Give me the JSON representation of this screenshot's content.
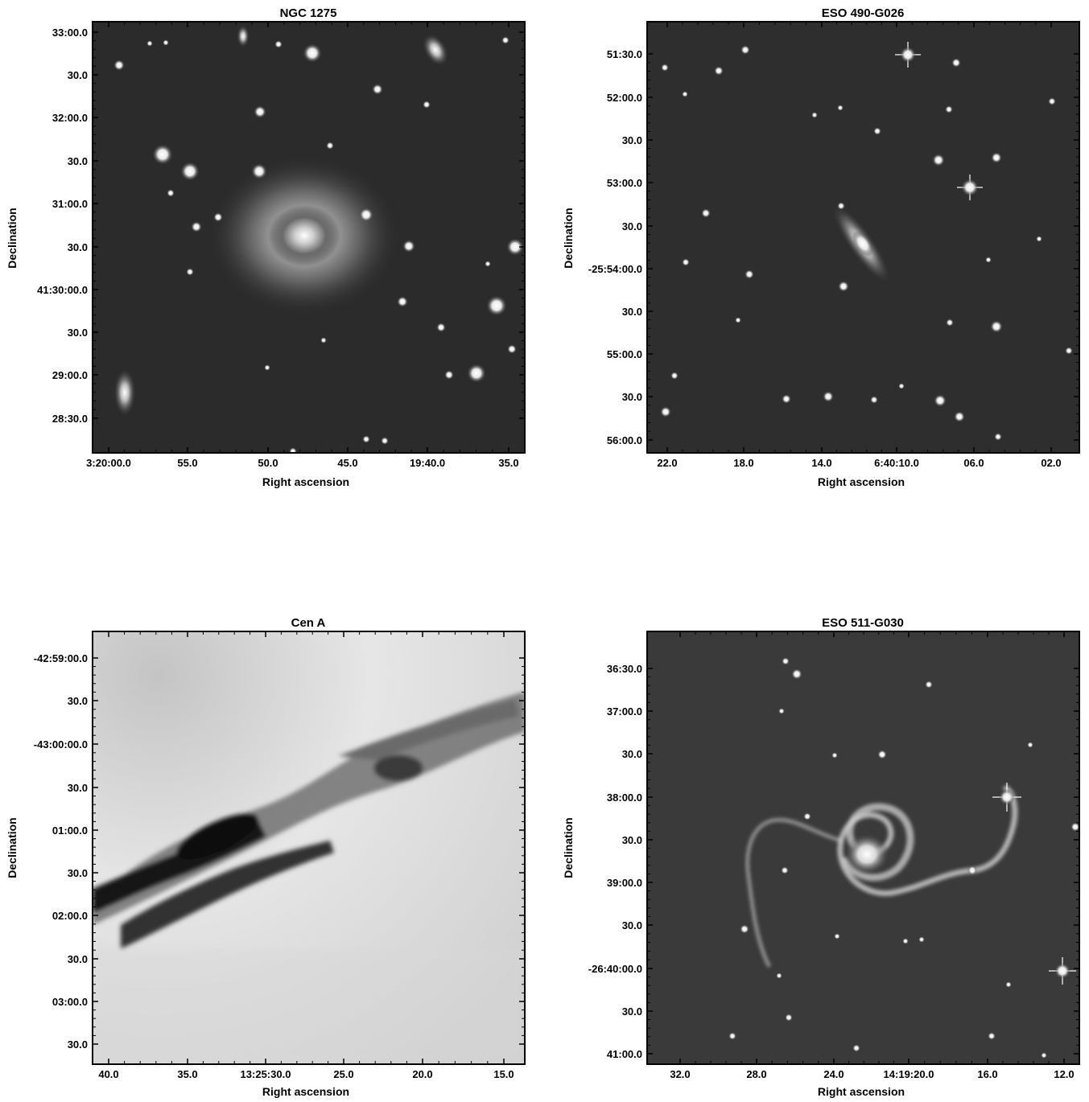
{
  "panels": [
    {
      "id": "ngc1275",
      "title": "NGC 1275",
      "xlabel": "Right ascension",
      "ylabel": "Declination",
      "xticks": [
        "3:20:00.0",
        "55.0",
        "50.0",
        "45.0",
        "19:40.0",
        "35.0"
      ],
      "yticks": [
        "33:00.0",
        "30.0",
        "32:00.0",
        "30.0",
        "31:00.0",
        "30.0",
        "41:30:00.0",
        "30.0",
        "29:00.0",
        "28:30.0"
      ],
      "image": {
        "style": "dark-field",
        "object": "giant elliptical galaxy with cluster members"
      }
    },
    {
      "id": "eso490",
      "title": "ESO 490-G026",
      "xlabel": "Right ascension",
      "ylabel": "Declination",
      "xticks": [
        "22.0",
        "18.0",
        "14.0",
        "6:40:10.0",
        "06.0",
        "02.0"
      ],
      "yticks": [
        "51:30.0",
        "52:00.0",
        "30.0",
        "53:00.0",
        "30.0",
        "-25:54:00.0",
        "30.0",
        "55:00.0",
        "30.0",
        "56:00.0"
      ],
      "image": {
        "style": "dark-field",
        "object": "inclined disk galaxy in star field"
      }
    },
    {
      "id": "cena",
      "title": "Cen A",
      "xlabel": "Right ascension",
      "ylabel": "Declination",
      "xticks": [
        "40.0",
        "35.0",
        "13:25:30.0",
        "25.0",
        "20.0",
        "15.0"
      ],
      "yticks": [
        "-42:59:00.0",
        "30.0",
        "-43:00:00.0",
        "30.0",
        "01:00.0",
        "30.0",
        "02:00.0",
        "30.0",
        "03:00.0",
        "30.0"
      ],
      "image": {
        "style": "inverted-light-field",
        "object": "dust lane"
      }
    },
    {
      "id": "eso511",
      "title": "ESO 511-G030",
      "xlabel": "Right ascension",
      "ylabel": "Declination",
      "xticks": [
        "32.0",
        "28.0",
        "24.0",
        "14:19:20.0",
        "16.0",
        "12.0"
      ],
      "yticks": [
        "36:30.0",
        "37:00.0",
        "30.0",
        "38:00.0",
        "30.0",
        "39:00.0",
        "30.0",
        "-26:40:00.0",
        "30.0",
        "41:00.0"
      ],
      "image": {
        "style": "dark-field",
        "object": "face-on grand-design spiral galaxy"
      }
    }
  ]
}
